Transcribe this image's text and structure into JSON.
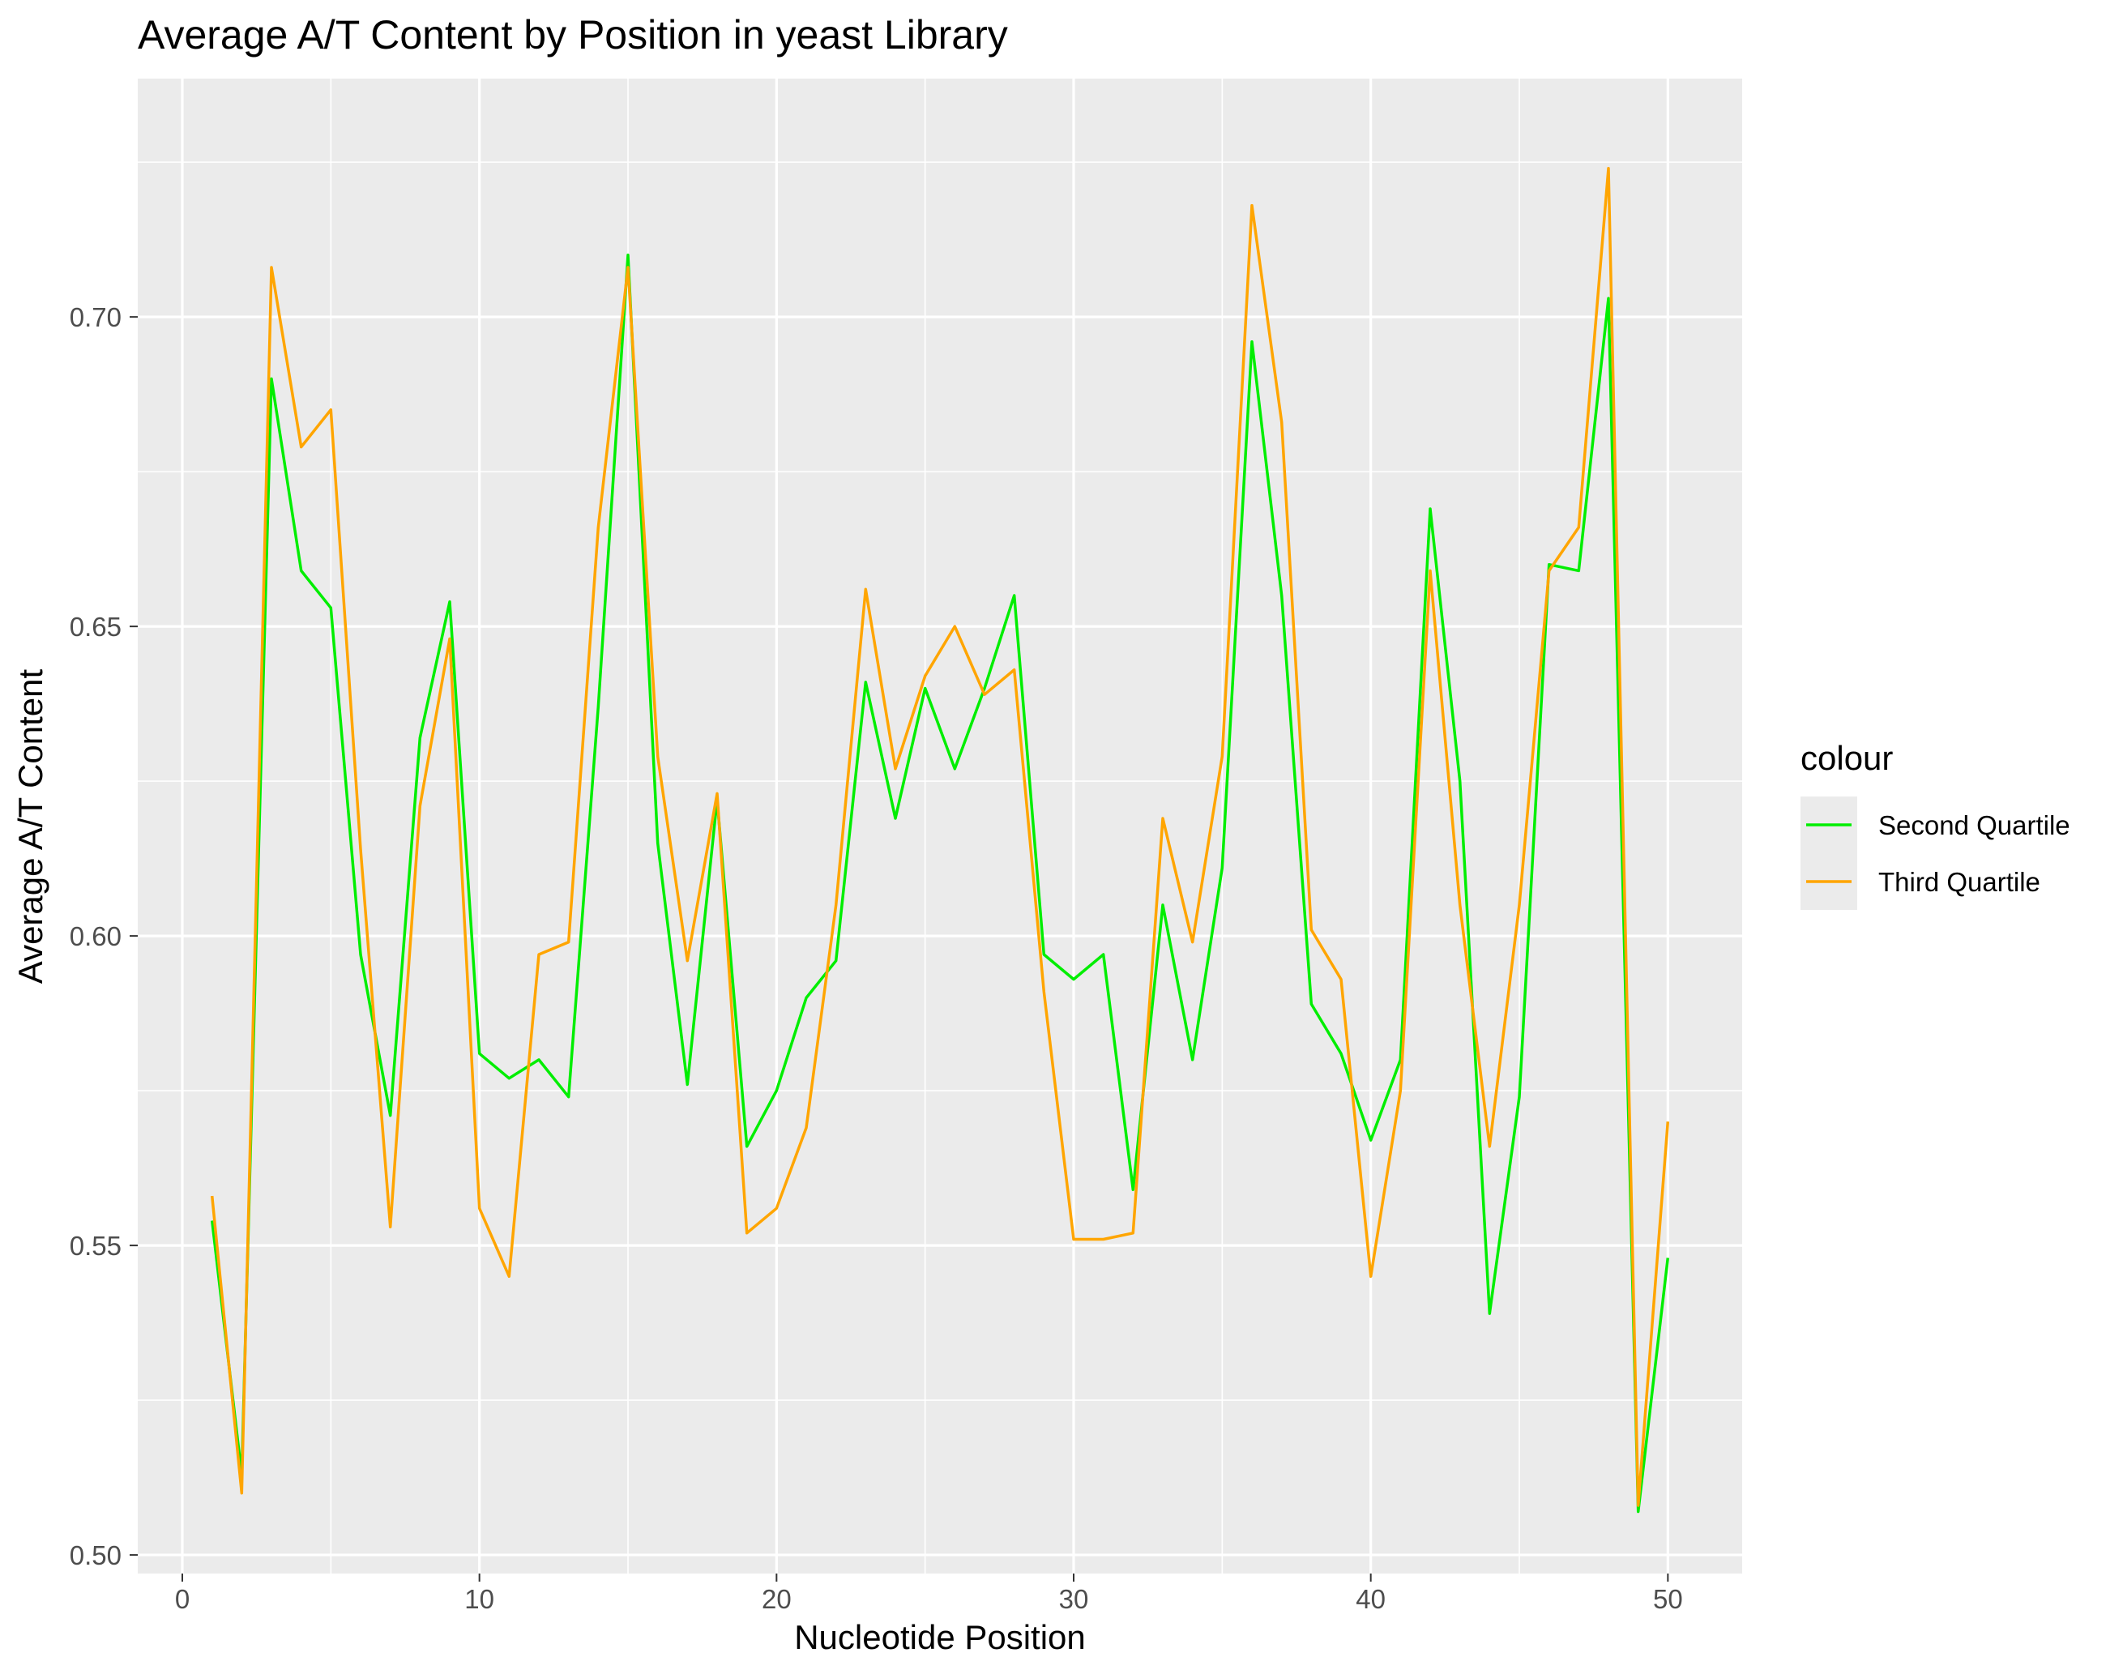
{
  "chart_data": {
    "type": "line",
    "title": "Average A/T Content by Position in yeast Library",
    "xlabel": "Nucleotide Position",
    "ylabel": "Average A/T Content",
    "xlim": [
      -1.5,
      52.5
    ],
    "ylim": [
      0.497,
      0.7385
    ],
    "x_ticks": [
      0,
      10,
      20,
      30,
      40,
      50
    ],
    "x_tick_labels": [
      "0",
      "10",
      "20",
      "30",
      "40",
      "50"
    ],
    "y_ticks": [
      0.5,
      0.55,
      0.6,
      0.65,
      0.7
    ],
    "y_tick_labels": [
      "0.50",
      "0.55",
      "0.60",
      "0.65",
      "0.70"
    ],
    "grid": true,
    "legend": {
      "title": "colour",
      "placement": "right"
    },
    "x": [
      1,
      2,
      3,
      4,
      5,
      6,
      7,
      8,
      9,
      10,
      11,
      12,
      13,
      14,
      15,
      16,
      17,
      18,
      19,
      20,
      21,
      22,
      23,
      24,
      25,
      26,
      27,
      28,
      29,
      30,
      31,
      32,
      33,
      34,
      35,
      36,
      37,
      38,
      39,
      40,
      41,
      42,
      43,
      44,
      45,
      46,
      47,
      48,
      49,
      50
    ],
    "series": [
      {
        "name": "Second Quartile",
        "color": "#00ee00",
        "values": [
          0.554,
          0.513,
          0.69,
          0.659,
          0.653,
          0.597,
          0.571,
          0.632,
          0.654,
          0.581,
          0.577,
          0.58,
          0.574,
          0.637,
          0.71,
          0.615,
          0.576,
          0.622,
          0.566,
          0.575,
          0.59,
          0.596,
          0.641,
          0.619,
          0.64,
          0.627,
          0.64,
          0.655,
          0.597,
          0.593,
          0.597,
          0.559,
          0.605,
          0.58,
          0.611,
          0.696,
          0.655,
          0.589,
          0.581,
          0.567,
          0.58,
          0.669,
          0.625,
          0.539,
          0.574,
          0.66,
          0.659,
          0.703,
          0.507,
          0.548
        ]
      },
      {
        "name": "Third Quartile",
        "color": "#ffa500",
        "values": [
          0.558,
          0.51,
          0.708,
          0.679,
          0.685,
          0.614,
          0.553,
          0.621,
          0.648,
          0.556,
          0.545,
          0.597,
          0.599,
          0.666,
          0.708,
          0.629,
          0.596,
          0.623,
          0.552,
          0.556,
          0.569,
          0.605,
          0.656,
          0.627,
          0.642,
          0.65,
          0.639,
          0.643,
          0.591,
          0.551,
          0.551,
          0.552,
          0.619,
          0.599,
          0.629,
          0.718,
          0.683,
          0.601,
          0.593,
          0.545,
          0.575,
          0.659,
          0.605,
          0.566,
          0.605,
          0.659,
          0.666,
          0.724,
          0.508,
          0.57
        ]
      }
    ]
  },
  "colors": {
    "panel_background": "#ebebeb",
    "grid_major": "#ffffff",
    "tick_mark": "#333333",
    "tick_label": "#4d4d4d"
  }
}
